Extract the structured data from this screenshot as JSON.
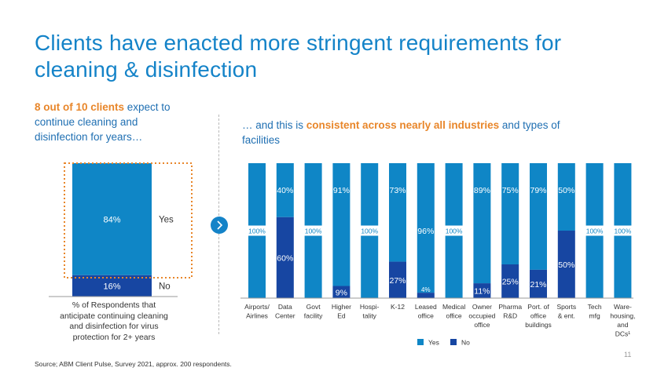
{
  "title": "Clients have enacted more stringent requirements for cleaning & disinfection",
  "left_heading": {
    "highlight": "8 out of 10 clients",
    "rest": " expect to continue cleaning and disinfection for years…"
  },
  "right_heading": {
    "prefix": "… and this is ",
    "highlight": "consistent across nearly all industries",
    "suffix": " and types of facilities"
  },
  "summary_label": "% of Respondents that anticipate continuing cleaning and disinfection for virus protection for 2+ years",
  "source": "Source; ABM Client Pulse, Survey 2021, approx. 200 respondents.",
  "page_number": "11",
  "colors": {
    "title_blue": "#1483c8",
    "yes": "#0f86c6",
    "no": "#1746a2",
    "highlight": "#e8862a"
  },
  "chart_data": [
    {
      "type": "bar",
      "stacked": true,
      "categories": [
        ""
      ],
      "series": [
        {
          "name": "No",
          "values": [
            16
          ],
          "labels": [
            "16%"
          ]
        },
        {
          "name": "Yes",
          "values": [
            84
          ],
          "labels": [
            "84%"
          ]
        }
      ],
      "side_labels": {
        "Yes": "Yes",
        "No": "No"
      },
      "ylim": [
        0,
        100
      ]
    },
    {
      "type": "bar",
      "stacked": true,
      "categories": [
        [
          "Airports/",
          "Airlines"
        ],
        [
          "Data",
          "Center"
        ],
        [
          "Govt",
          "facility"
        ],
        [
          "Higher",
          "Ed"
        ],
        [
          "Hospi-",
          "tality"
        ],
        [
          "K-12"
        ],
        [
          "Leased",
          "office"
        ],
        [
          "Medical",
          "office"
        ],
        [
          "Owner",
          "occupied",
          "office"
        ],
        [
          "Pharma",
          "R&D"
        ],
        [
          "Port. of",
          "office",
          "buildings"
        ],
        [
          "Sports",
          "& ent."
        ],
        [
          "Tech",
          "mfg"
        ],
        [
          "Ware-",
          "housing,",
          "and",
          "DCs¹"
        ]
      ],
      "series": [
        {
          "name": "No",
          "values": [
            0,
            60,
            0,
            9,
            0,
            27,
            4,
            0,
            11,
            25,
            21,
            50,
            0,
            0
          ],
          "labels": [
            "",
            "60%",
            "",
            "9%",
            "",
            "27%",
            "4%",
            "",
            "11%",
            "25%",
            "21%",
            "50%",
            "",
            ""
          ]
        },
        {
          "name": "Yes",
          "values": [
            100,
            40,
            100,
            91,
            100,
            73,
            96,
            100,
            89,
            75,
            79,
            50,
            100,
            100
          ],
          "labels": [
            "100%",
            "40%",
            "100%",
            "91%",
            "100%",
            "73%",
            "96%",
            "100%",
            "89%",
            "75%",
            "79%",
            "50%",
            "100%",
            "100%"
          ]
        }
      ],
      "legend": [
        {
          "name": "Yes",
          "color": "#0f86c6"
        },
        {
          "name": "No",
          "color": "#1746a2"
        }
      ],
      "legend_position": "bottom",
      "ylim": [
        0,
        100
      ]
    }
  ]
}
